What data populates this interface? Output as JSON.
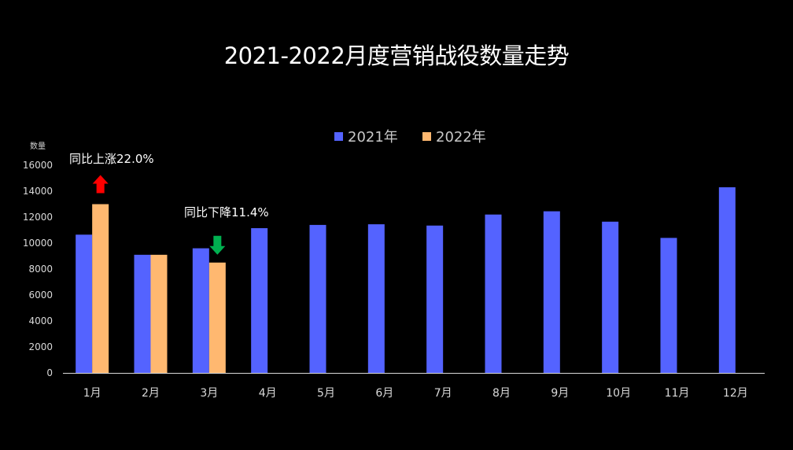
{
  "chart_data": {
    "type": "bar",
    "title": "2021-2022月度营销战役数量走势",
    "ylabel": "数量",
    "xlabel": "",
    "categories": [
      "1月",
      "2月",
      "3月",
      "4月",
      "5月",
      "6月",
      "7月",
      "8月",
      "9月",
      "10月",
      "11月",
      "12月"
    ],
    "series": [
      {
        "name": "2021年",
        "color": "#5463ff",
        "values": [
          10650,
          9100,
          9600,
          11150,
          11400,
          11450,
          11350,
          12200,
          12450,
          11650,
          10400,
          14300
        ]
      },
      {
        "name": "2022年",
        "color": "#ffb870",
        "values": [
          13000,
          9100,
          8500,
          null,
          null,
          null,
          null,
          null,
          null,
          null,
          null,
          null
        ]
      }
    ],
    "ylim": [
      0,
      16000
    ],
    "yticks": [
      0,
      2000,
      4000,
      6000,
      8000,
      10000,
      12000,
      14000,
      16000
    ],
    "grid": false,
    "legend_position": "top-center",
    "annotations": [
      {
        "text": "同比上涨22.0%",
        "category": "1月",
        "direction": "up",
        "color": "#ff0000"
      },
      {
        "text": "同比下降11.4%",
        "category": "3月",
        "direction": "down",
        "color": "#00b050"
      }
    ]
  }
}
